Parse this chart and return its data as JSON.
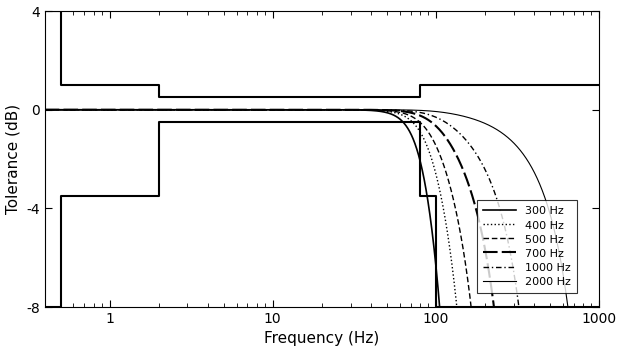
{
  "title": "",
  "xlabel": "Frequency (Hz)",
  "ylabel": "Tolerance (dB)",
  "xlim": [
    0.4,
    1000
  ],
  "ylim": [
    -8,
    4
  ],
  "yticks": [
    -8,
    -4,
    0,
    4
  ],
  "sampling_rates": [
    300,
    400,
    500,
    700,
    1000,
    2000
  ],
  "legend_labels": [
    "300 Hz",
    "400 Hz",
    "500 Hz",
    "700 Hz",
    "1000 Hz",
    "2000 Hz"
  ],
  "upper_x": [
    0.4,
    0.5,
    0.5,
    2.0,
    2.0,
    80.0,
    80.0,
    1000
  ],
  "upper_y": [
    4.0,
    4.0,
    1.0,
    1.0,
    0.5,
    0.5,
    1.0,
    1.0
  ],
  "lower_x": [
    0.4,
    0.5,
    0.5,
    2.0,
    2.0,
    80.0,
    80.0,
    100.0,
    100.0,
    1000
  ],
  "lower_y": [
    -8.0,
    -8.0,
    -3.5,
    -3.5,
    -0.5,
    -0.5,
    -3.5,
    -3.5,
    -8.0,
    -8.0
  ],
  "background_color": "white"
}
